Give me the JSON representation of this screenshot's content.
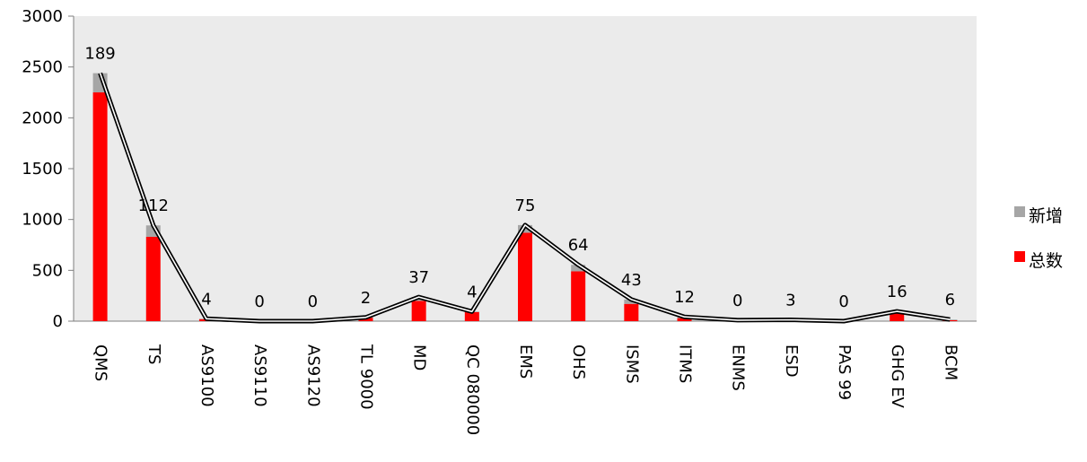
{
  "chart_data": {
    "type": "bar",
    "categories": [
      "QMS",
      "TS",
      "AS9100",
      "AS9110",
      "AS9120",
      "TL 9000",
      "MD",
      "QC 080000",
      "EMS",
      "OHS",
      "ISMS",
      "ITMS",
      "ENMS",
      "ESD",
      "PAS 99",
      "GHG EV",
      "BCM"
    ],
    "series": [
      {
        "name": "总数",
        "color": "#ff0000",
        "values": [
          2250,
          830,
          20,
          0,
          0,
          35,
          200,
          90,
          870,
          490,
          170,
          30,
          10,
          10,
          0,
          80,
          10
        ]
      },
      {
        "name": "新增",
        "color": "#a6a6a6",
        "values": [
          189,
          112,
          4,
          0,
          0,
          2,
          37,
          4,
          75,
          64,
          43,
          12,
          0,
          3,
          0,
          16,
          6
        ]
      }
    ],
    "stacked": true,
    "data_labels": [
      "189",
      "112",
      "4",
      "0",
      "0",
      "2",
      "37",
      "4",
      "75",
      "64",
      "43",
      "12",
      "0",
      "3",
      "0",
      "16",
      "6"
    ],
    "total_line": {
      "color": "#000000",
      "style": "double"
    },
    "y_ticks": [
      "0",
      "500",
      "1000",
      "1500",
      "2000",
      "2500",
      "3000"
    ],
    "ylim": [
      0,
      3000
    ],
    "plot_background": "#ebebeb",
    "grid": false,
    "legend_position": "right",
    "title": "",
    "xlabel": "",
    "ylabel": ""
  }
}
